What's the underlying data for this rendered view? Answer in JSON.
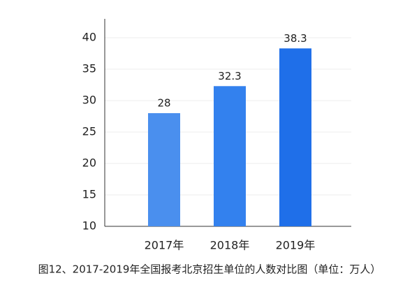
{
  "chart_data": {
    "type": "bar",
    "caption": "图12、2017-2019年全国报考北京招生单位的人数对比图（单位：万人）",
    "categories": [
      "2017年",
      "2018年",
      "2019年"
    ],
    "values": [
      28,
      32.3,
      38.3
    ],
    "colors": [
      "#4a8fee",
      "#3381ee",
      "#1f6fe9"
    ],
    "ylim": [
      10,
      43
    ],
    "yticks": [
      10,
      15,
      20,
      25,
      30,
      35,
      40
    ],
    "grid": true
  }
}
